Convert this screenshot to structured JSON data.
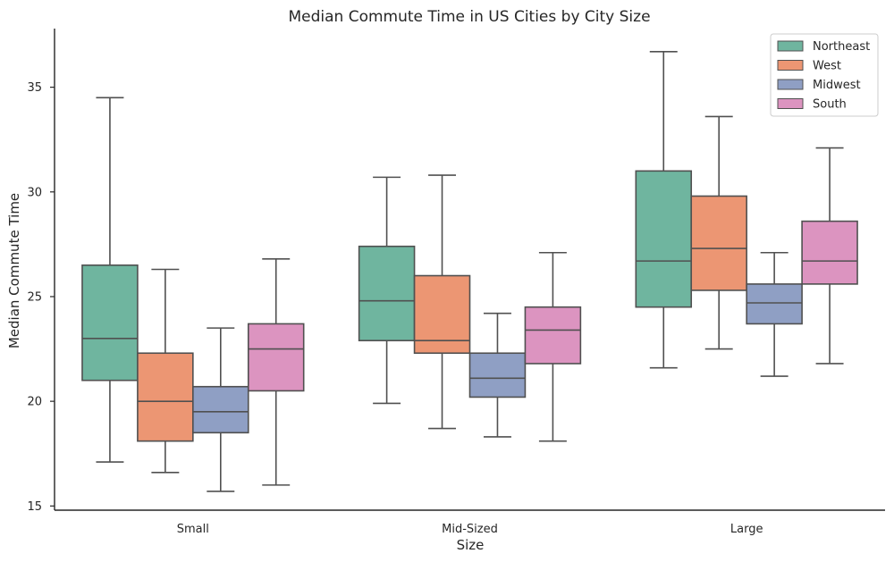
{
  "chart_data": {
    "type": "boxplot",
    "title": "Median Commute Time in US Cities by City Size",
    "xlabel": "Size",
    "ylabel": "Median Commute Time",
    "categories": [
      "Small",
      "Mid-Sized",
      "Large"
    ],
    "ylim": [
      14.8,
      37.8
    ],
    "yticks": [
      15,
      20,
      25,
      30,
      35
    ],
    "legend_position": "top-right",
    "grid": false,
    "series": [
      {
        "name": "Northeast",
        "color": "#6fb59f",
        "boxes": [
          {
            "whisker_low": 17.1,
            "q1": 21.0,
            "median": 23.0,
            "q3": 26.5,
            "whisker_high": 34.5
          },
          {
            "whisker_low": 19.9,
            "q1": 22.9,
            "median": 24.8,
            "q3": 27.4,
            "whisker_high": 30.7
          },
          {
            "whisker_low": 21.6,
            "q1": 24.5,
            "median": 26.7,
            "q3": 31.0,
            "whisker_high": 36.7
          }
        ]
      },
      {
        "name": "West",
        "color": "#ec9673",
        "boxes": [
          {
            "whisker_low": 16.6,
            "q1": 18.1,
            "median": 20.0,
            "q3": 22.3,
            "whisker_high": 26.3
          },
          {
            "whisker_low": 18.7,
            "q1": 22.3,
            "median": 22.9,
            "q3": 26.0,
            "whisker_high": 30.8
          },
          {
            "whisker_low": 22.5,
            "q1": 25.3,
            "median": 27.3,
            "q3": 29.8,
            "whisker_high": 33.6
          }
        ]
      },
      {
        "name": "Midwest",
        "color": "#8f9fc4",
        "boxes": [
          {
            "whisker_low": 15.7,
            "q1": 18.5,
            "median": 19.5,
            "q3": 20.7,
            "whisker_high": 23.5
          },
          {
            "whisker_low": 18.3,
            "q1": 20.2,
            "median": 21.1,
            "q3": 22.3,
            "whisker_high": 24.2
          },
          {
            "whisker_low": 21.2,
            "q1": 23.7,
            "median": 24.7,
            "q3": 25.6,
            "whisker_high": 27.1
          }
        ]
      },
      {
        "name": "South",
        "color": "#dc94c0",
        "boxes": [
          {
            "whisker_low": 16.0,
            "q1": 20.5,
            "median": 22.5,
            "q3": 23.7,
            "whisker_high": 26.8
          },
          {
            "whisker_low": 18.1,
            "q1": 21.8,
            "median": 23.4,
            "q3": 24.5,
            "whisker_high": 27.1
          },
          {
            "whisker_low": 21.8,
            "q1": 25.6,
            "median": 26.7,
            "q3": 28.6,
            "whisker_high": 32.1
          }
        ]
      }
    ]
  }
}
